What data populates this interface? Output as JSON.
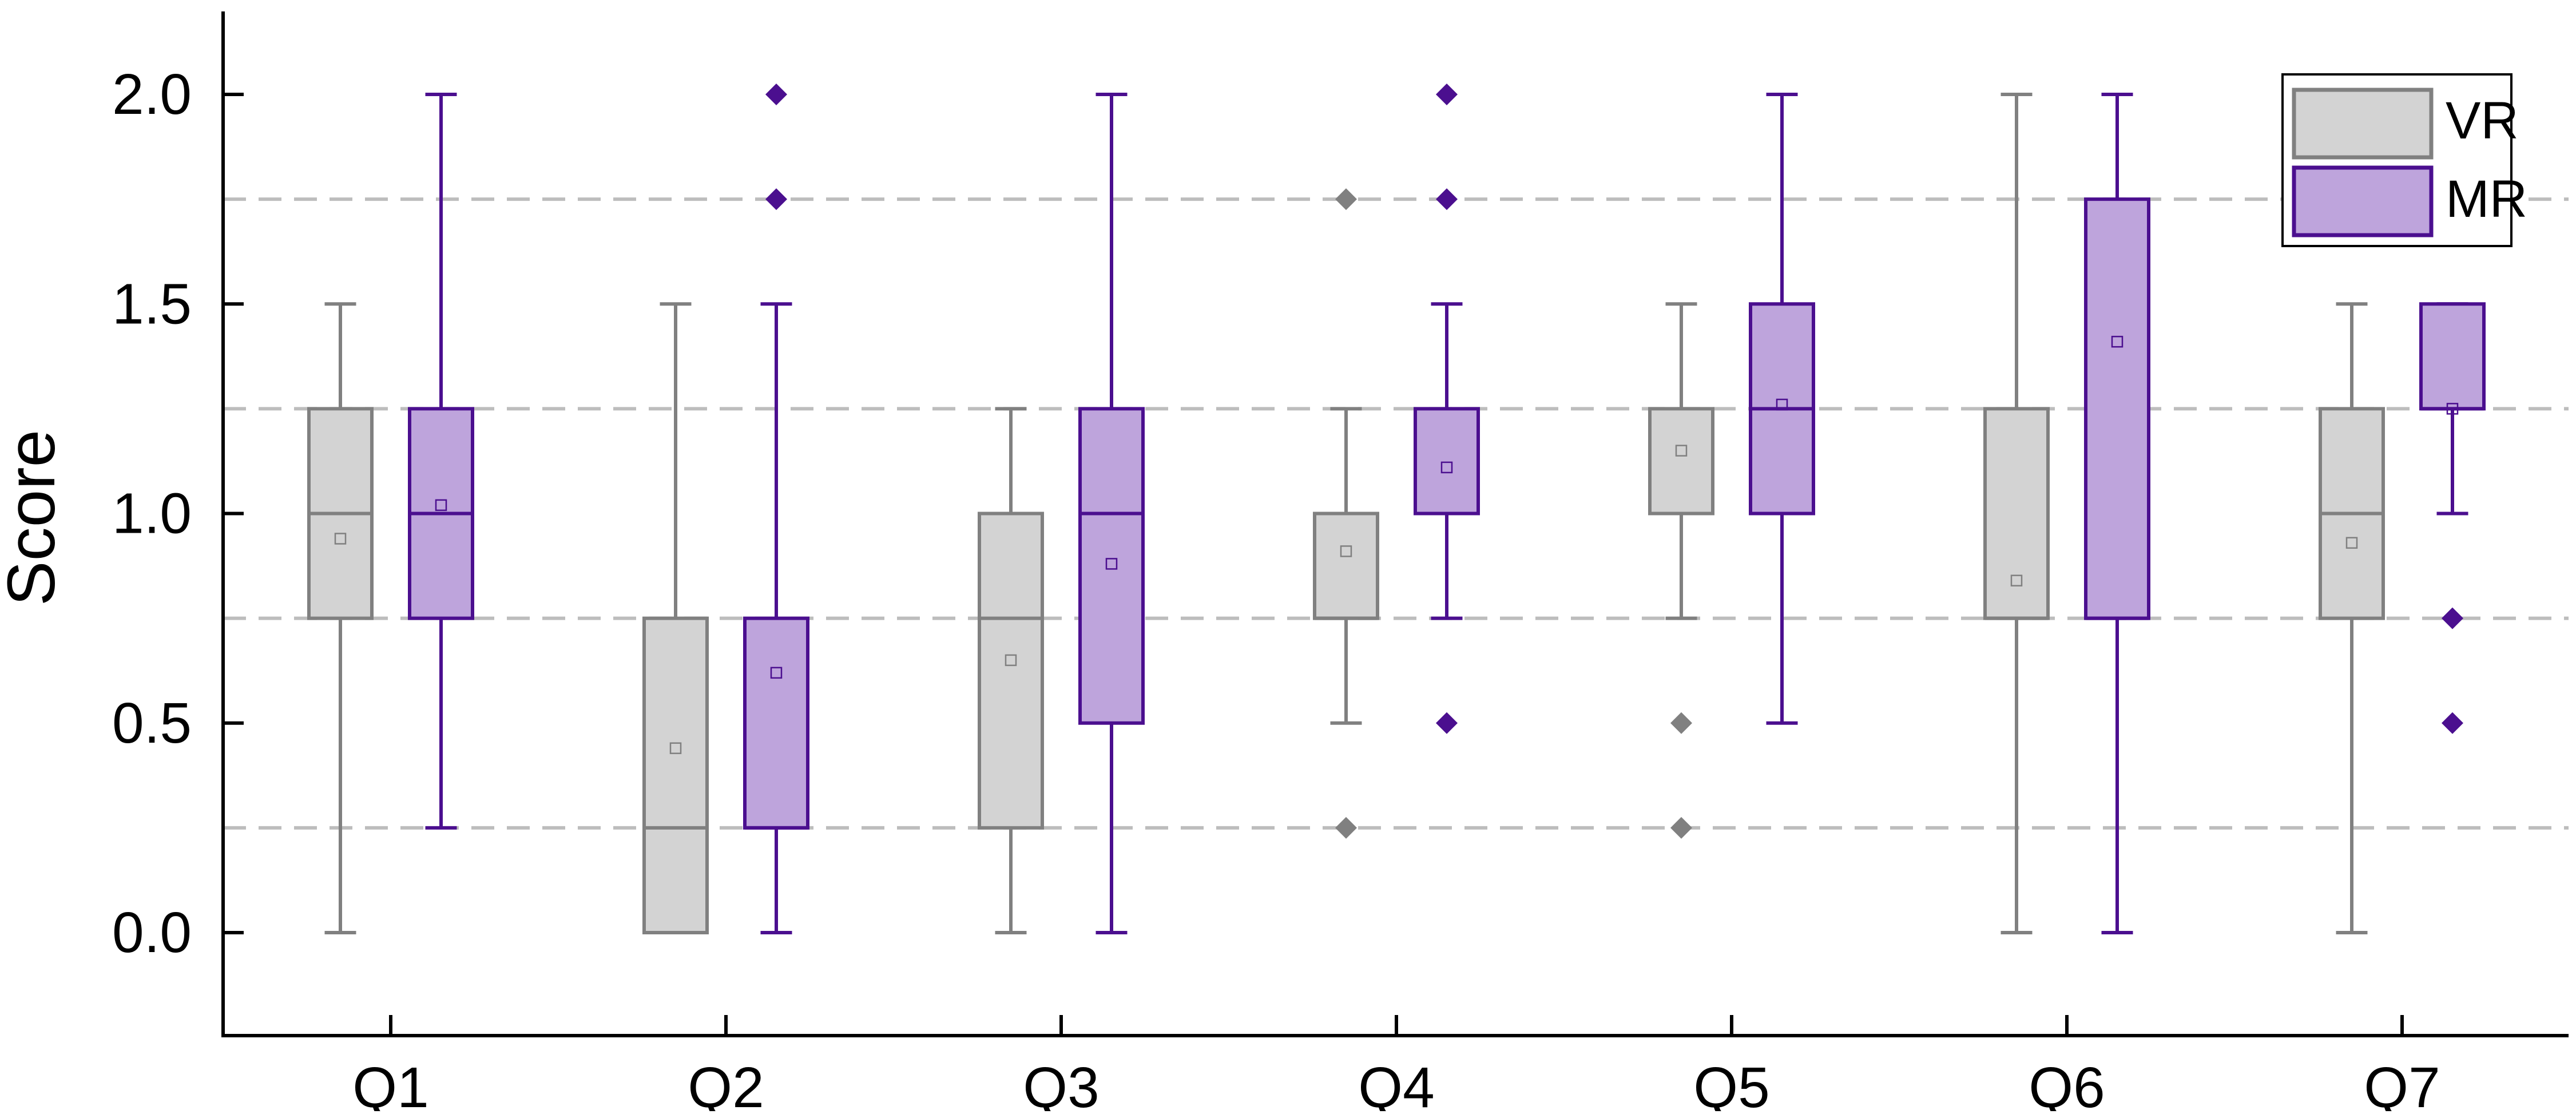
{
  "chart_data": {
    "type": "box",
    "title": "",
    "xlabel": "",
    "ylabel": "Score",
    "ylim": [
      -0.25,
      2.2
    ],
    "yticks": [
      0.0,
      0.5,
      1.0,
      1.5,
      2.0
    ],
    "ytick_labels": [
      "0.0",
      "0.5",
      "1.0",
      "1.5",
      "2.0"
    ],
    "gridlines_y": [
      0.25,
      0.75,
      1.25,
      1.75
    ],
    "categories": [
      "Q1",
      "Q2",
      "Q3",
      "Q4",
      "Q5",
      "Q6",
      "Q7"
    ],
    "legend_position": "top-right",
    "series": [
      {
        "name": "VR",
        "fill": "#d3d3d3",
        "stroke": "#808080",
        "boxes": [
          {
            "whislo": 0.0,
            "q1": 0.75,
            "median": 1.0,
            "q3": 1.25,
            "whishi": 1.5,
            "mean": 0.94,
            "fliers": []
          },
          {
            "whislo": 0.0,
            "q1": 0.0,
            "median": 0.25,
            "q3": 0.75,
            "whishi": 1.5,
            "mean": 0.44,
            "fliers": []
          },
          {
            "whislo": 0.0,
            "q1": 0.25,
            "median": 0.75,
            "q3": 1.0,
            "whishi": 1.25,
            "mean": 0.65,
            "fliers": []
          },
          {
            "whislo": 0.5,
            "q1": 0.75,
            "median": 0.75,
            "q3": 1.0,
            "whishi": 1.25,
            "mean": 0.91,
            "fliers": [
              1.75,
              0.25
            ]
          },
          {
            "whislo": 0.75,
            "q1": 1.0,
            "median": 1.0,
            "q3": 1.25,
            "whishi": 1.5,
            "mean": 1.15,
            "fliers": [
              0.5,
              0.25
            ]
          },
          {
            "whislo": 0.0,
            "q1": 0.75,
            "median": 0.75,
            "q3": 1.25,
            "whishi": 2.0,
            "mean": 0.84,
            "fliers": []
          },
          {
            "whislo": 0.0,
            "q1": 0.75,
            "median": 1.0,
            "q3": 1.25,
            "whishi": 1.5,
            "mean": 0.93,
            "fliers": []
          }
        ]
      },
      {
        "name": "MR",
        "fill": "#bea4dc",
        "stroke": "#4b0f8f",
        "boxes": [
          {
            "whislo": 0.25,
            "q1": 0.75,
            "median": 1.0,
            "q3": 1.25,
            "whishi": 2.0,
            "mean": 1.02,
            "fliers": []
          },
          {
            "whislo": 0.0,
            "q1": 0.25,
            "median": 0.25,
            "q3": 0.75,
            "whishi": 1.5,
            "mean": 0.62,
            "fliers": [
              2.0,
              1.75
            ]
          },
          {
            "whislo": 0.0,
            "q1": 0.5,
            "median": 1.0,
            "q3": 1.25,
            "whishi": 2.0,
            "mean": 0.88,
            "fliers": []
          },
          {
            "whislo": 0.75,
            "q1": 1.0,
            "median": 1.0,
            "q3": 1.25,
            "whishi": 1.5,
            "mean": 1.11,
            "fliers": [
              2.0,
              1.75,
              0.5
            ]
          },
          {
            "whislo": 0.5,
            "q1": 1.0,
            "median": 1.25,
            "q3": 1.5,
            "whishi": 2.0,
            "mean": 1.26,
            "fliers": []
          },
          {
            "whislo": 0.0,
            "q1": 0.75,
            "median": 0.75,
            "q3": 1.75,
            "whishi": 2.0,
            "mean": 1.41,
            "fliers": []
          },
          {
            "whislo": 1.0,
            "q1": 1.25,
            "median": 1.25,
            "q3": 1.5,
            "whishi": 1.5,
            "mean": 1.25,
            "fliers": [
              0.75,
              0.5
            ]
          }
        ]
      }
    ]
  }
}
